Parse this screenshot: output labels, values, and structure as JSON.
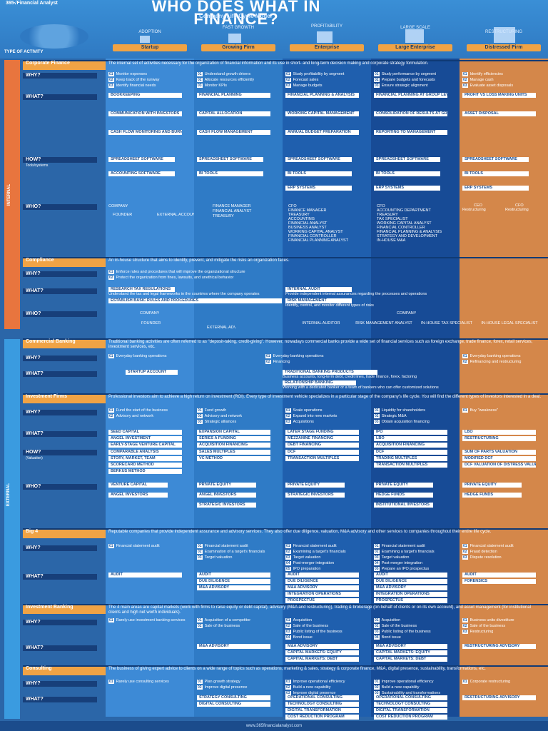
{
  "brand": "365√Financial Analyst",
  "title": "WHO DOES WHAT IN FINANCE?",
  "subtitle": "Company Life Cycle Model",
  "type_of_activity": "TYPE OF ACTIVITY",
  "footer": "www.365financialanalyst.com",
  "stages": [
    {
      "label": "ADOPTION",
      "pill": "Startup"
    },
    {
      "label": "FAST GROWTH",
      "pill": "Growing Firm"
    },
    {
      "label": "PROFITABILITY",
      "pill": "Enterprise"
    },
    {
      "label": "LARGE SCALE",
      "pill": "Large Enterprise"
    },
    {
      "label": "RESTRUCTURING",
      "pill": "Distressed Firm"
    }
  ],
  "bands": {
    "internal": "INTERNAL",
    "external": "EXTERNAL"
  },
  "questions": {
    "why": "WHY?",
    "what": "WHAT?",
    "how": "HOW?",
    "how_sub": "Tools/systems",
    "who": "WHO?",
    "how_val": "HOW?",
    "how_val_sub": "(Valuation)"
  },
  "sections": {
    "corporate": {
      "tag": "Corporate Finance",
      "desc": "The internal set of activities necessary for the organization of financial information and its use in short- and long-term decision making and corporate strategy formulation."
    },
    "compliance": {
      "tag": "Compliance",
      "desc": "An in-house structure that aims to identify, prevent, and mitigate the risks an organization faces."
    },
    "commercial": {
      "tag": "Commercial Banking",
      "desc": "Traditional banking activities are often referred to as \"deposit-taking, credit-giving\". However, nowadays commercial banks provide a wide set of financial services such as foreign exchange, trade finance, forex, retail services, investment services, etc."
    },
    "investment": {
      "tag": "Investment Firms",
      "desc": "Professional investors aim to achieve a high return on investment (ROI). Every type of investment vehicle specializes in a particular stage of the company's life cycle. You will find the different types of investors interested in a deal."
    },
    "big4": {
      "tag": "Big 4",
      "desc": "Reputable companies that provide independent assurance and advisory services. They also offer due diligence, valuation, M&A advisory and other services to companies throughout their entire life cycle."
    },
    "ib": {
      "tag": "Investment Banking",
      "desc": "The 4 main areas are capital markets (work with firms to raise equity or debt capital), advisory (M&A and restructuring), trading & brokerage (on behalf of clients or on its own account), and asset management (for institutional clients and high net worth individuals)."
    },
    "consulting": {
      "tag": "Consulting",
      "desc": "The business of giving expert advice to clients on a wide range of topics such as operations, marketing & sales, strategy & corporate finance, M&A, digital presence, sustainability, transformations, etc."
    }
  },
  "cf": {
    "why": [
      [
        "Monitor expenses",
        "Keep track of the runway",
        "Identify financial needs"
      ],
      [
        "Understand growth drivers",
        "Allocate resources efficiently",
        "Monitor KPIs"
      ],
      [
        "Study profitability by segment",
        "Forecast sales",
        "Manage budgets"
      ],
      [
        "Study performance by segment",
        "Prepare budgets and forecasts",
        "Ensure strategic alignment"
      ],
      [
        "Identify efficiencies",
        "Manage cash",
        "Evaluate asset disposals"
      ]
    ],
    "what": [
      [
        "BOOKKEEPING",
        "COMMUNICATION WITH INVESTORS",
        "CASH FLOW MONITORING AND BURN RATE ANALYSIS"
      ],
      [
        "FINANCIAL PLANNING",
        "CAPITAL ALLOCATION",
        "CASH FLOW MANAGEMENT"
      ],
      [
        "FINANCIAL PLANNING & ANALYSIS",
        "WORKING CAPITAL MANAGEMENT",
        "ANNUAL BUDGET PREPARATION"
      ],
      [
        "FINANCIAL PLANNING AT GROUP LEVEL",
        "CONSOLIDATION OF RESULTS AT GROUP LEVEL",
        "REPORTING TO MANAGEMENT"
      ],
      [
        "PROFIT VS LOSS MAKING UNITS",
        "ASSET DISPOSAL"
      ]
    ],
    "how": [
      [
        "SPREADSHEET SOFTWARE",
        "ACCOUNTING SOFTWARE"
      ],
      [
        "SPREADSHEET SOFTWARE",
        "BI TOOLS"
      ],
      [
        "SPREADSHEET SOFTWARE",
        "BI TOOLS",
        "ERP SYSTEMS"
      ],
      [
        "SPREADSHEET SOFTWARE",
        "BI TOOLS",
        "ERP SYSTEMS"
      ],
      [
        "SPREADSHEET SOFTWARE",
        "BI TOOLS",
        "ERP SYSTEMS"
      ]
    ],
    "who_startup": {
      "company": "COMPANY",
      "founder": "FOUNDER",
      "external": "EXTERNAL ACCOUNTANTS"
    },
    "who_growing": [
      "FINANCE MANAGER",
      "FINANCIAL ANALYST",
      "TREASURY"
    ],
    "who_enterprise": [
      "CFO",
      "FINANCE MANAGER",
      "TREASURY",
      "ACCOUNTING",
      "FINANCIAL ANALYST",
      "BUSINESS ANALYST",
      "WORKING CAPITAL ANALYST",
      "FINANCIAL CONTROLLER",
      "FINANCIAL PLANNING ANALYST"
    ],
    "who_large": [
      "CFO",
      "ACCOUNTING DEPARTMENT",
      "TREASURY",
      "TAX SPECIALIST",
      "WORKING CAPITAL ANALYST",
      "FINANCIAL CONTROLLER",
      "FINANCIAL PLANNING & ANALYSIS",
      "STRATEGY AND DEVELOPMENT",
      "IN-HOUSE M&A"
    ],
    "who_distressed": [
      "CEO",
      "CFO",
      "Restructuring",
      "Restructuring"
    ]
  },
  "compliance": {
    "why": [
      "Enforce rules and procedures that will improve the organizational structure",
      "Protect the organization from fines, lawsuits, and unethical behavior"
    ],
    "what_left": [
      "RESEARCH TAX REGULATIONS",
      "Understand the tax and legal frameworks in the countries where the company operates",
      "ESTABLISH BASIC RULES AND PROCEDURES"
    ],
    "what_right": [
      "INTERNAL AUDIT",
      "Provide independent internal assurances regarding the processes and operations",
      "RISK MANAGEMENT",
      "Identify, control, and monitor different types of risks"
    ],
    "who_left": {
      "company": "COMPANY",
      "founder": "FOUNDER",
      "external": "EXTERNAL ADVISORS"
    },
    "who_right": {
      "company": "COMPANY",
      "roles": [
        "INTERNAL AUDITOR",
        "RISK MANAGEMENT ANALYST",
        "IN-HOUSE TAX SPECIALIST",
        "IN-HOUSE LEGAL SPECIALIST"
      ]
    }
  },
  "commercial": {
    "why_startup": [
      "Everyday banking operations"
    ],
    "why_right": [
      "Everyday banking operations",
      "Financing"
    ],
    "why_distressed": [
      "Everyday banking operations",
      "Refinancing and restructuring"
    ],
    "what_startup": [
      "STARTUP ACCOUNT"
    ],
    "what_right": [
      "TRADITIONAL BANKING PRODUCTS",
      "Business accounts, long-term debt, credit lines, trade finance, forex, factoring",
      "RELATIONSHIP BANKING",
      "Working with a dedicated banker or a team of bankers who can offer customized solutions"
    ]
  },
  "inv": {
    "why": [
      [
        "Fund the start of the business",
        "Advisory and network"
      ],
      [
        "Fund growth",
        "Advisory and network",
        "Strategic alliances"
      ],
      [
        "Scale operations",
        "Expand into new markets",
        "Acquisitions"
      ],
      [
        "Liquidity for shareholders",
        "Strategic M&A",
        "Obtain acquisition financing"
      ],
      [
        "Buy \"weakness\""
      ]
    ],
    "what": [
      [
        "SEED CAPITAL",
        "ANGEL INVESTMENT",
        "EARLY-STAGE VENTURE CAPITAL"
      ],
      [
        "EXPANSION CAPITAL",
        "SERIES A FUNDING",
        "ACQUISITION FINANCING"
      ],
      [
        "LATER STAGE FUNDING",
        "MEZZANINE FINANCING",
        "DEBT FINANCING"
      ],
      [
        "IPO",
        "LBO",
        "ACQUISITION FINANCING"
      ],
      [
        "LBO",
        "RESTRUCTURING"
      ]
    ],
    "how": [
      [
        "COMPARABLE ANALYSIS",
        "STORY, MARKET, TEAM",
        "SCORECARD METHOD",
        "BERKUS METHOD"
      ],
      [
        "SALES MULTIPLES",
        "VC METHOD"
      ],
      [
        "DCF",
        "TRANSACTION MULTIPLES"
      ],
      [
        "DCF",
        "TRADING MULTIPLES",
        "TRANSACTION MULTIPLES"
      ],
      [
        "SUM OF PARTS VALUATION",
        "MODIFIED DCF",
        "DCF VALUATION OF DISTRESS VALUE"
      ]
    ],
    "who": [
      [
        "VENTURE CAPITAL",
        "ANGEL INVESTORS"
      ],
      [
        "PRIVATE EQUITY",
        "ANGEL INVESTORS",
        "STRATEGIC INVESTORS"
      ],
      [
        "PRIVATE EQUITY",
        "STRATEGIC INVESTORS"
      ],
      [
        "PRIVATE EQUITY",
        "HEDGE FUNDS",
        "INSTITUTIONAL INVESTORS"
      ],
      [
        "PRIVATE EQUITY",
        "HEDGE FUNDS"
      ]
    ]
  },
  "big4": {
    "why": [
      [
        "Financial statement audit"
      ],
      [
        "Financial statement audit",
        "Examination of a target's financials",
        "Target valuation"
      ],
      [
        "Financial statement audit",
        "Examining a target's financials",
        "Target valuation",
        "Post-merger integration",
        "IPO preparation"
      ],
      [
        "Financial statement audit",
        "Examining a target's financials",
        "Target valuation",
        "Post-merger integration",
        "Prepare an IPO prospectus"
      ],
      [
        "Financial statement audit",
        "Fraud detection",
        "Dispute resolution"
      ]
    ],
    "what": [
      [
        "AUDIT"
      ],
      [
        "AUDIT",
        "DUE DILIGENCE",
        "M&A ADVISORY"
      ],
      [
        "AUDIT",
        "DUE DILIGENCE",
        "M&A ADVISORY",
        "INTEGRATION OPERATIONS",
        "PROSPECTUS"
      ],
      [
        "AUDIT",
        "DUE DILIGENCE",
        "M&A ADVISORY",
        "INTEGRATION OPERATIONS",
        "PROSPECTUS"
      ],
      [
        "AUDIT",
        "FORENSICS"
      ]
    ]
  },
  "ib": {
    "why": [
      [
        "Rarely use investment banking services"
      ],
      [
        "Acquisition of a competitor",
        "Sale of the business"
      ],
      [
        "Acquisition",
        "Sale of the business",
        "Public listing of the business",
        "Bond issue"
      ],
      [
        "Acquisition",
        "Sale of the business",
        "Public listing of the business",
        "Bond issue"
      ],
      [
        "Business units divestiture",
        "Sale of the business",
        "Restructuring"
      ]
    ],
    "what": [
      [],
      [
        "M&A ADVISORY"
      ],
      [
        "M&A ADVISORY",
        "CAPITAL MARKETS: EQUITY",
        "CAPITAL MARKETS: DEBT"
      ],
      [
        "M&A ADVISORY",
        "CAPITAL MARKETS: EQUITY",
        "CAPITAL MARKETS: DEBT"
      ],
      [
        "RESTRUCTURING ADVISORY"
      ]
    ]
  },
  "consulting": {
    "why": [
      [
        "Rarely use consulting services"
      ],
      [
        "Plan growth strategy",
        "Improve digital presence"
      ],
      [
        "Improve operational efficiency",
        "Build a new capability",
        "Improve digital presence"
      ],
      [
        "Improve operational efficiency",
        "Build a new capability",
        "Sustainability and transformations"
      ],
      [
        "Corporate restructuring"
      ]
    ],
    "what": [
      [],
      [
        "STRATEGY CONSULTING",
        "DIGITAL CONSULTING"
      ],
      [
        "OPERATIONAL CONSULTING",
        "TECHNOLOGY CONSULTING",
        "DIGITAL TRANSFORMATION",
        "COST REDUCTION PROGRAM"
      ],
      [
        "OPERATIONAL CONSULTING",
        "TECHNOLOGY CONSULTING",
        "DIGITAL TRANSFORMATION",
        "COST REDUCTION PROGRAM"
      ],
      [
        "RESTRUCTURING ADVISORY"
      ]
    ]
  }
}
